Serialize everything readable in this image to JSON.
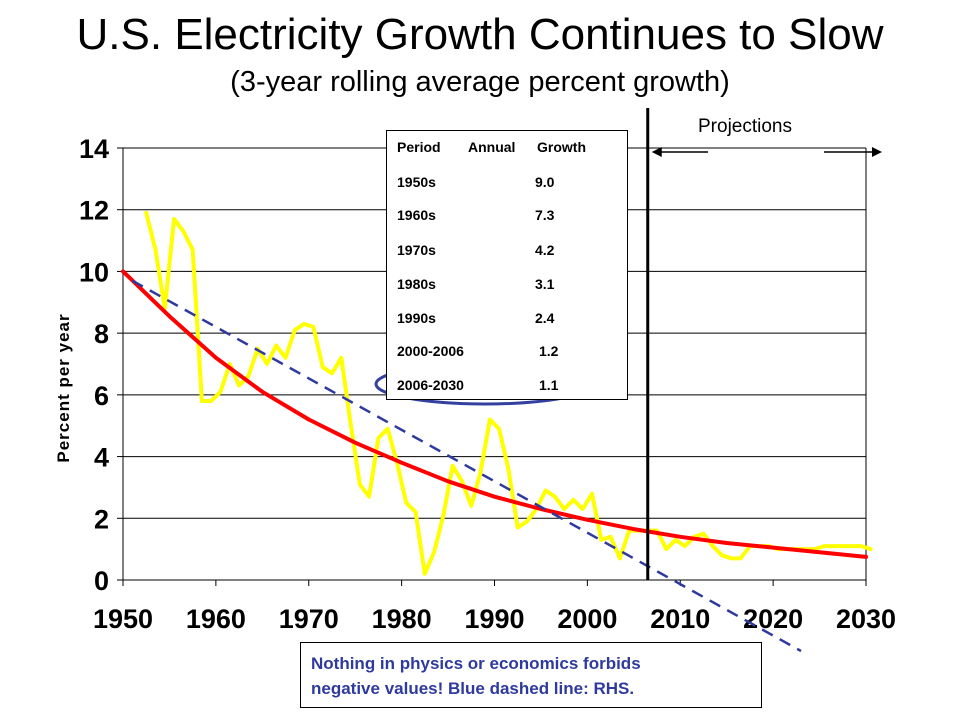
{
  "chart_data": {
    "type": "line",
    "title": "U.S. Electricity Growth Continues to Slow",
    "subtitle": "(3-year rolling average percent growth)",
    "ylabel": "Percent per year",
    "xlabel": "",
    "xlim": [
      1950,
      2030
    ],
    "ylim": [
      0,
      14
    ],
    "x_ticks": [
      "1950",
      "1960",
      "1970",
      "1980",
      "1990",
      "2000",
      "2010",
      "2020",
      "2030"
    ],
    "y_ticks": [
      "0",
      "2",
      "4",
      "6",
      "8",
      "10",
      "12",
      "14"
    ],
    "grid": "horizontal",
    "series": [
      {
        "color": "#ffff00",
        "x": [
          1952.5,
          1953.5,
          1954.5,
          1955.5,
          1956.5,
          1957.5,
          1958.5,
          1959.5,
          1960.5,
          1961.5,
          1962.5,
          1963.5,
          1964.5,
          1965.5,
          1966.5,
          1967.5,
          1968.5,
          1969.5,
          1970.5,
          1971.5,
          1972.5,
          1973.5,
          1974.5,
          1975.5,
          1976.5,
          1977.5,
          1978.5,
          1979.5,
          1980.5,
          1981.5,
          1982.5,
          1983.5,
          1984.5,
          1985.5,
          1986.5,
          1987.5,
          1988.5,
          1989.5,
          1990.5,
          1991.5,
          1992.5,
          1993.5,
          1994.5,
          1995.5,
          1996.5,
          1997.5,
          1998.5,
          1999.5,
          2000.5,
          2001.5,
          2002.5,
          2003.5,
          2004.5,
          2005.5,
          2006.5,
          2007.5,
          2008.5,
          2009.5,
          2010.5,
          2011.5,
          2012.5,
          2013.5,
          2014.5,
          2015.5,
          2016.5,
          2017.5,
          2018.5,
          2019.5,
          2020.5,
          2021.5,
          2022.5,
          2023.5,
          2024.5,
          2025.5,
          2026.5,
          2027.5,
          2028.5,
          2029.5,
          2030.5
        ],
        "values": [
          11.9,
          10.7,
          8.8,
          11.7,
          11.3,
          10.7,
          5.8,
          5.8,
          6.1,
          7.0,
          6.3,
          6.6,
          7.5,
          7.0,
          7.6,
          7.2,
          8.1,
          8.3,
          8.2,
          6.9,
          6.7,
          7.2,
          5.1,
          3.1,
          2.7,
          4.6,
          4.9,
          3.8,
          2.5,
          2.2,
          0.2,
          0.9,
          2.1,
          3.7,
          3.2,
          2.4,
          3.5,
          5.2,
          4.9,
          3.6,
          1.7,
          1.9,
          2.3,
          2.9,
          2.7,
          2.3,
          2.6,
          2.3,
          2.8,
          1.3,
          1.4,
          0.7,
          1.6,
          1.6,
          1.6,
          1.6,
          1.0,
          1.3,
          1.1,
          1.4,
          1.5,
          1.1,
          0.8,
          0.7,
          0.7,
          1.1,
          1.1,
          1.1,
          1.0,
          1.0,
          1.0,
          1.0,
          1.0,
          1.1,
          1.1,
          1.1,
          1.1,
          1.1,
          1.0
        ]
      },
      {
        "color": "#ff0000",
        "x": [
          1950,
          1955,
          1960,
          1965,
          1970,
          1975,
          1980,
          1985,
          1990,
          1995,
          2000,
          2005,
          2010,
          2015,
          2020,
          2025,
          2030
        ],
        "values": [
          10.0,
          8.55,
          7.2,
          6.1,
          5.2,
          4.45,
          3.8,
          3.2,
          2.7,
          2.3,
          1.95,
          1.65,
          1.4,
          1.2,
          1.05,
          0.9,
          0.75
        ]
      },
      {
        "color": "#2e3a9e",
        "dashed": true,
        "x": [
          1951,
          2023
        ],
        "values": [
          9.7,
          -2.3
        ]
      }
    ],
    "projection_start": 2006.5,
    "projection_label": "Projections",
    "table": {
      "headers": [
        "Period",
        "Annual",
        "Growth"
      ],
      "rows": [
        {
          "period": "1950s",
          "value": "9.0"
        },
        {
          "period": "1960s",
          "value": "7.3"
        },
        {
          "period": "1970s",
          "value": "4.2"
        },
        {
          "period": "1980s",
          "value": "3.1"
        },
        {
          "period": "1990s",
          "value": "2.4"
        },
        {
          "period": "2000-2006",
          "value": "1.2"
        },
        {
          "period": "2006-2030",
          "value": "1.1"
        }
      ],
      "highlight_color": "#3340a0"
    },
    "note": {
      "line1": "Nothing in physics or economics forbids",
      "line2": "negative values! Blue dashed line: RHS."
    }
  }
}
